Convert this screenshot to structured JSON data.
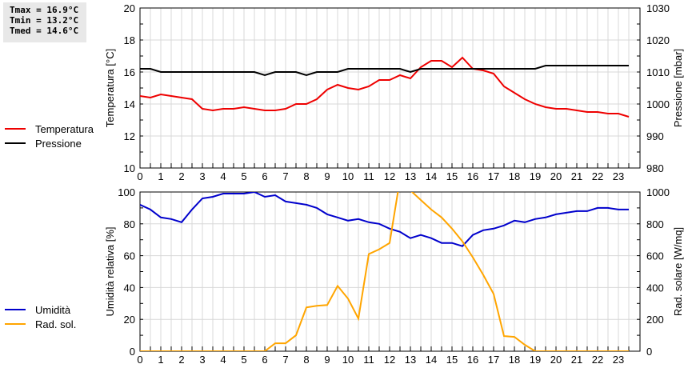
{
  "stats": {
    "tmax": "Tmax = 16.9°C",
    "tmin": "Tmin = 13.2°C",
    "tmed": "Tmed = 14.6°C"
  },
  "legend_top": [
    {
      "label": "Temperatura",
      "color": "#ee0000"
    },
    {
      "label": "Pressione",
      "color": "#000000"
    }
  ],
  "legend_bottom": [
    {
      "label": "Umidità",
      "color": "#0000cc"
    },
    {
      "label": "Rad. sol.",
      "color": "#ffa500"
    }
  ],
  "chart_data": [
    {
      "type": "line",
      "title": "",
      "xlabel": "",
      "ylabel": "Temperatura [°C]",
      "y2label": "Pressione [mbar]",
      "xlim": [
        0,
        24
      ],
      "ylim": [
        10,
        20
      ],
      "y2lim": [
        980,
        1030
      ],
      "x_ticks": [
        "0",
        "1",
        "2",
        "3",
        "4",
        "5",
        "6",
        "7",
        "8",
        "9",
        "10",
        "11",
        "12",
        "13",
        "14",
        "15",
        "16",
        "17",
        "18",
        "19",
        "20",
        "21",
        "22",
        "23"
      ],
      "y_ticks": [
        "10",
        "12",
        "14",
        "16",
        "18",
        "20"
      ],
      "y2_ticks": [
        "980",
        "990",
        "1000",
        "1010",
        "1020",
        "1030"
      ],
      "grid": true,
      "x": [
        0,
        0.5,
        1,
        1.5,
        2,
        2.5,
        3,
        3.5,
        4,
        4.5,
        5,
        5.5,
        6,
        6.5,
        7,
        7.5,
        8,
        8.5,
        9,
        9.5,
        10,
        10.5,
        11,
        11.5,
        12,
        12.5,
        13,
        13.5,
        14,
        14.5,
        15,
        15.5,
        16,
        16.5,
        17,
        17.5,
        18,
        18.5,
        19,
        19.5,
        20,
        20.5,
        21,
        21.5,
        22,
        22.5,
        23,
        23.5
      ],
      "series": [
        {
          "name": "Temperatura",
          "axis": "left",
          "color": "#ee0000",
          "values": [
            14.5,
            14.4,
            14.6,
            14.5,
            14.4,
            14.3,
            13.7,
            13.6,
            13.7,
            13.7,
            13.8,
            13.7,
            13.6,
            13.6,
            13.7,
            14.0,
            14.0,
            14.3,
            14.9,
            15.2,
            15.0,
            14.9,
            15.1,
            15.5,
            15.5,
            15.8,
            15.6,
            16.3,
            16.7,
            16.7,
            16.3,
            16.9,
            16.2,
            16.1,
            15.9,
            15.1,
            14.7,
            14.3,
            14.0,
            13.8,
            13.7,
            13.7,
            13.6,
            13.5,
            13.5,
            13.4,
            13.4,
            13.2
          ]
        },
        {
          "name": "Pressione",
          "axis": "right",
          "color": "#000000",
          "values": [
            1011,
            1011,
            1010,
            1010,
            1010,
            1010,
            1010,
            1010,
            1010,
            1010,
            1010,
            1010,
            1009,
            1010,
            1010,
            1010,
            1009,
            1010,
            1010,
            1010,
            1011,
            1011,
            1011,
            1011,
            1011,
            1011,
            1010,
            1011,
            1011,
            1011,
            1011,
            1011,
            1011,
            1011,
            1011,
            1011,
            1011,
            1011,
            1011,
            1012,
            1012,
            1012,
            1012,
            1012,
            1012,
            1012,
            1012,
            1012
          ]
        }
      ]
    },
    {
      "type": "line",
      "title": "",
      "xlabel": "",
      "ylabel": "Umidità relativa [%]",
      "y2label": "Rad. solare [W/mq]",
      "xlim": [
        0,
        24
      ],
      "ylim": [
        0,
        100
      ],
      "y2lim": [
        0,
        1000
      ],
      "x_ticks": [
        "0",
        "1",
        "2",
        "3",
        "4",
        "5",
        "6",
        "7",
        "8",
        "9",
        "10",
        "11",
        "12",
        "13",
        "14",
        "15",
        "16",
        "17",
        "18",
        "19",
        "20",
        "21",
        "22",
        "23"
      ],
      "y_ticks": [
        "0",
        "20",
        "40",
        "60",
        "80",
        "100"
      ],
      "y2_ticks": [
        "0",
        "200",
        "400",
        "600",
        "800",
        "1000"
      ],
      "grid": true,
      "x": [
        0,
        0.5,
        1,
        1.5,
        2,
        2.5,
        3,
        3.5,
        4,
        4.5,
        5,
        5.5,
        6,
        6.5,
        7,
        7.5,
        8,
        8.5,
        9,
        9.5,
        10,
        10.5,
        11,
        11.5,
        12,
        12.5,
        13,
        13.5,
        14,
        14.5,
        15,
        15.5,
        16,
        16.5,
        17,
        17.5,
        18,
        18.5,
        19,
        19.5,
        20,
        20.5,
        21,
        21.5,
        22,
        22.5,
        23,
        23.5
      ],
      "series": [
        {
          "name": "Umidità",
          "axis": "left",
          "color": "#0000cc",
          "values": [
            92,
            89,
            84,
            83,
            81,
            89,
            96,
            97,
            99,
            99,
            99,
            100,
            97,
            98,
            94,
            93,
            92,
            90,
            86,
            84,
            82,
            83,
            81,
            80,
            77,
            75,
            71,
            73,
            71,
            68,
            68,
            66,
            73,
            76,
            77,
            79,
            82,
            81,
            83,
            84,
            86,
            87,
            88,
            88,
            90,
            90,
            89,
            89
          ]
        },
        {
          "name": "Rad. sol.",
          "axis": "right",
          "color": "#ffa500",
          "values": [
            0,
            0,
            0,
            0,
            0,
            0,
            0,
            0,
            0,
            0,
            0,
            0,
            0,
            50,
            50,
            100,
            275,
            285,
            290,
            410,
            330,
            205,
            610,
            640,
            680,
            1080,
            1010,
            950,
            890,
            840,
            770,
            690,
            590,
            480,
            360,
            95,
            90,
            40,
            0,
            0,
            0,
            0,
            0,
            0,
            0,
            0,
            0,
            0
          ]
        }
      ]
    }
  ]
}
